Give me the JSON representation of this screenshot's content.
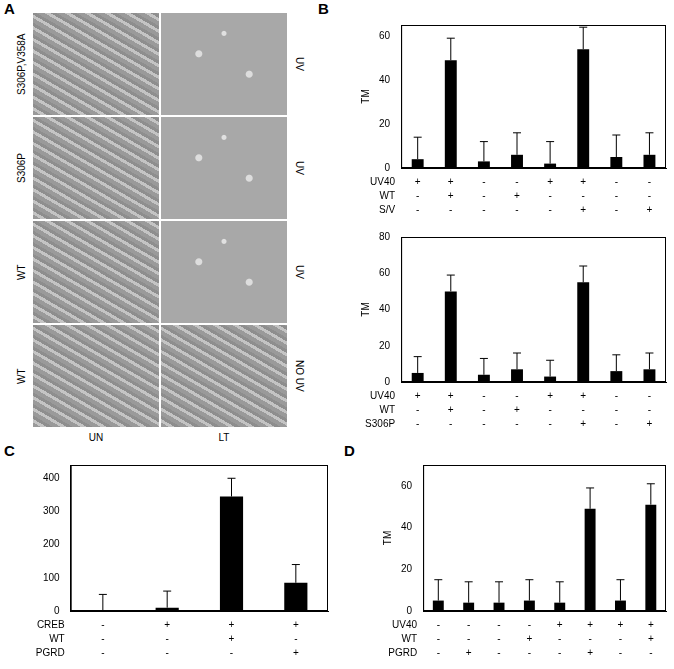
{
  "panel_a": {
    "label": "A",
    "rows": [
      {
        "left": "S306P,V358A",
        "right": "UV"
      },
      {
        "left": "S306P",
        "right": "UV"
      },
      {
        "left": "WT",
        "right": "UV"
      },
      {
        "left": "WT",
        "right": "NO UV"
      }
    ],
    "columns": [
      "UN",
      "LT"
    ]
  },
  "chart_data": [
    {
      "type": "bar",
      "panel": "B",
      "y_label": "TM",
      "color": "#000000",
      "categories": [
        null,
        null,
        null,
        null,
        null,
        null,
        null,
        null
      ],
      "values": [
        4,
        49,
        3,
        6,
        2,
        54,
        5,
        6
      ],
      "errors": [
        10,
        10,
        9,
        10,
        10,
        10,
        10,
        10
      ],
      "conditions": [
        {
          "name": "UV40",
          "marks": [
            "+",
            "+",
            "-",
            "-",
            "+",
            "+",
            "-",
            "-"
          ]
        },
        {
          "name": "WT",
          "marks": [
            "-",
            "+",
            "-",
            "+",
            "-",
            "-",
            "-",
            "-"
          ]
        },
        {
          "name": "S/V",
          "marks": [
            "-",
            "-",
            "-",
            "-",
            "-",
            "+",
            "-",
            "+"
          ]
        }
      ],
      "ylim": [
        0,
        65
      ],
      "yticks": [
        0,
        20,
        40,
        60
      ]
    },
    {
      "type": "bar",
      "y_label": "TM",
      "color": "#000000",
      "categories": [
        null,
        null,
        null,
        null,
        null,
        null,
        null,
        null
      ],
      "values": [
        5,
        50,
        4,
        7,
        3,
        55,
        6,
        7
      ],
      "errors": [
        9,
        9,
        9,
        9,
        9,
        9,
        9,
        9
      ],
      "conditions": [
        {
          "name": "UV40",
          "marks": [
            "+",
            "+",
            "-",
            "-",
            "+",
            "+",
            "-",
            "-"
          ]
        },
        {
          "name": "WT",
          "marks": [
            "-",
            "+",
            "-",
            "+",
            "-",
            "-",
            "-",
            "-"
          ]
        },
        {
          "name": "S306P",
          "marks": [
            "-",
            "-",
            "-",
            "-",
            "-",
            "+",
            "-",
            "+"
          ]
        }
      ],
      "ylim": [
        0,
        80
      ],
      "yticks": [
        0,
        20,
        40,
        60,
        80
      ]
    },
    {
      "type": "bar",
      "panel": "C",
      "color": "#000000",
      "categories": [
        null,
        null,
        null,
        null
      ],
      "values": [
        0,
        10,
        345,
        85
      ],
      "errors": [
        50,
        50,
        55,
        55
      ],
      "conditions": [
        {
          "name": "CREB",
          "marks": [
            "-",
            "+",
            "+",
            "+"
          ]
        },
        {
          "name": "WT",
          "marks": [
            "-",
            "-",
            "+",
            "-"
          ]
        },
        {
          "name": "PGRD",
          "marks": [
            "-",
            "-",
            "-",
            "+"
          ]
        }
      ],
      "ylim": [
        0,
        440
      ],
      "yticks": [
        0,
        100,
        200,
        300,
        400
      ]
    },
    {
      "type": "bar",
      "panel": "D",
      "y_label": "TM",
      "color": "#000000",
      "categories": [
        null,
        null,
        null,
        null,
        null,
        null,
        null,
        null
      ],
      "values": [
        5,
        4,
        4,
        5,
        4,
        49,
        5,
        51
      ],
      "errors": [
        10,
        10,
        10,
        10,
        10,
        10,
        10,
        10
      ],
      "conditions": [
        {
          "name": "UV40",
          "marks": [
            "-",
            "-",
            "-",
            "-",
            "+",
            "+",
            "+",
            "+"
          ]
        },
        {
          "name": "WT",
          "marks": [
            "-",
            "-",
            "-",
            "+",
            "-",
            "-",
            "-",
            "+"
          ]
        },
        {
          "name": "PGRD",
          "marks": [
            "-",
            "+",
            "-",
            "-",
            "-",
            "+",
            "-",
            "-"
          ]
        }
      ],
      "ylim": [
        0,
        70
      ],
      "yticks": [
        0,
        20,
        40,
        60
      ]
    }
  ]
}
